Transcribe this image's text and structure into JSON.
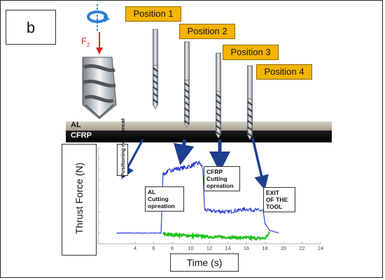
{
  "panel_label": "b",
  "force_label": {
    "main": "F",
    "sub": "z"
  },
  "positions": [
    "Position 1",
    "Position 2",
    "Position 3",
    "Position 4"
  ],
  "layers": {
    "top": "AL",
    "bottom": "CFRP"
  },
  "annotations": {
    "non_contact": "Positioning non-concat",
    "al_cutting": [
      "AL",
      "Cutting",
      "opreation"
    ],
    "cfrp_cutting": [
      "CFRP",
      "Cutting",
      "opreation"
    ],
    "exit": [
      "EXIT",
      "OF THE",
      "TOOL"
    ]
  },
  "colors": {
    "position_box": "#f5b400",
    "force_arrow": "#e0201b",
    "thrust_trace": "#1f2fd6",
    "noise_trace": "#22c21f",
    "connector": "#1f3f8f"
  },
  "chart_data": {
    "type": "line",
    "xlabel": "Time (s)",
    "ylabel": "Thrust Force (N)",
    "xlim": [
      0,
      24
    ],
    "ylim": [
      -20,
      160
    ],
    "x_ticks": [
      4,
      6,
      8,
      10,
      12,
      14,
      16,
      18,
      20,
      22,
      24
    ],
    "y_ticks": [
      -20,
      0,
      20,
      40,
      60,
      80,
      100,
      120,
      140,
      160
    ],
    "series": [
      {
        "color": "#1f2fd6",
        "x": [
          2,
          6.8,
          7.0,
          7.5,
          8,
          9,
          10,
          10.5,
          11,
          11.3,
          11.5,
          12,
          14,
          16,
          17.8,
          18.0,
          18.5,
          19.5
        ],
        "y": [
          0,
          0,
          110,
          115,
          120,
          122,
          126,
          130,
          132,
          120,
          44,
          42,
          40,
          45,
          42,
          18,
          5,
          0
        ]
      },
      {
        "color": "#22c21f",
        "x": [
          7,
          10,
          12,
          14,
          16,
          18,
          18.5
        ],
        "y": [
          -2,
          -5,
          -7,
          -8,
          -9,
          -10,
          0
        ]
      }
    ]
  }
}
